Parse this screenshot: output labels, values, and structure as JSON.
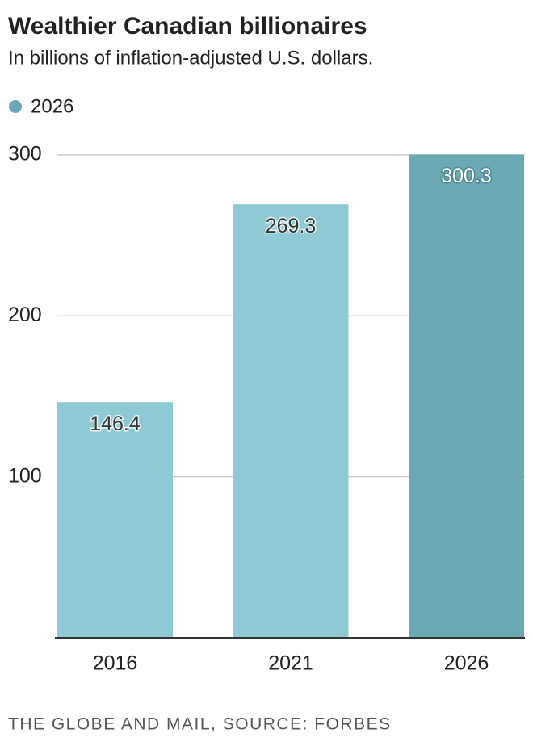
{
  "chart_data": {
    "type": "bar",
    "title": "Wealthier Canadian billionaires",
    "subtitle": "In billions of inflation-adjusted U.S. dollars.",
    "legend": {
      "label": "2026",
      "color": "#6aa9b3"
    },
    "categories": [
      "2016",
      "2021",
      "2026"
    ],
    "values": [
      146.4,
      269.3,
      300.3
    ],
    "colors": [
      "#8fcad4",
      "#8fcad4",
      "#6aa9b3"
    ],
    "ylim": [
      0,
      300
    ],
    "yticks": [
      100,
      200,
      300
    ],
    "grid": true,
    "source": "THE GLOBE AND MAIL, SOURCE: FORBES"
  }
}
